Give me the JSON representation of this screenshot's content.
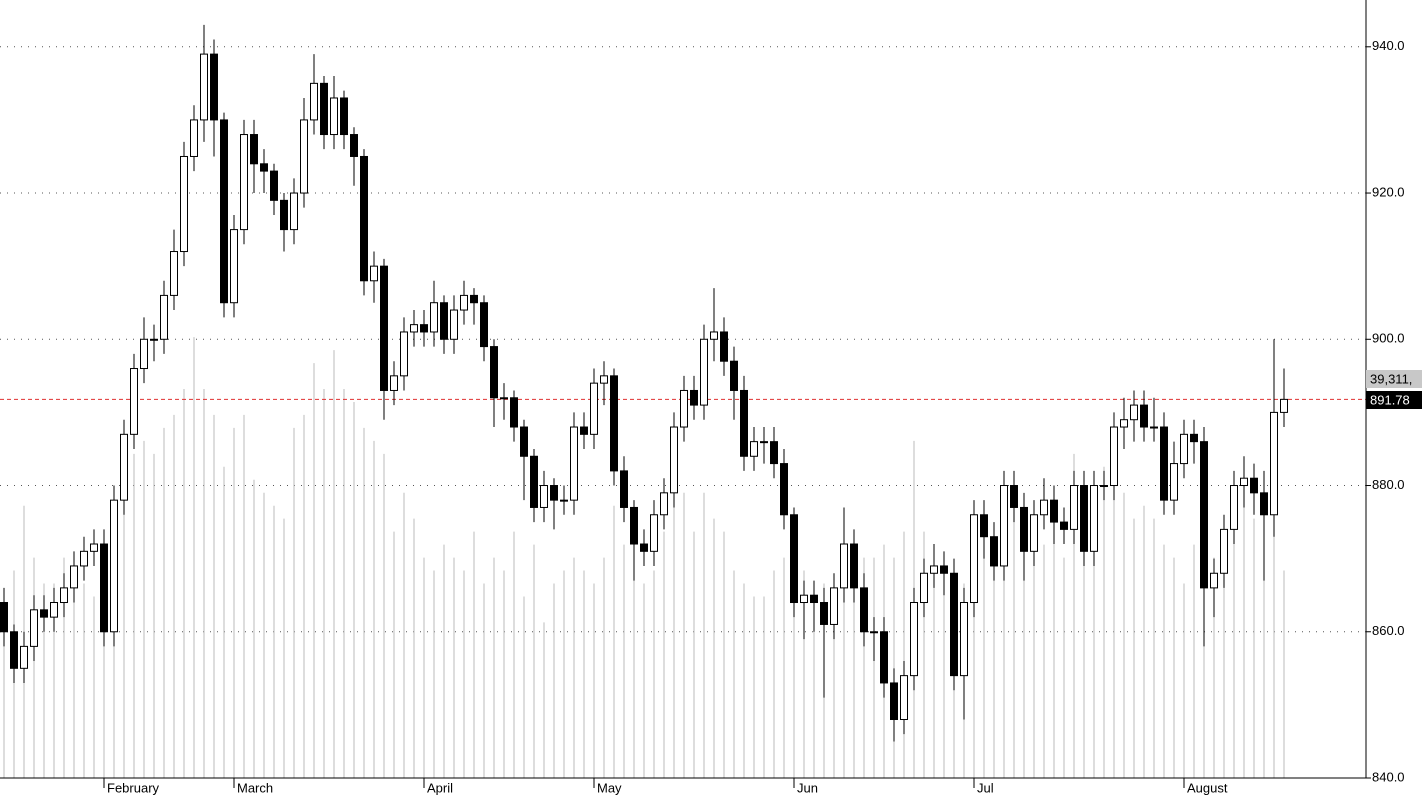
{
  "chart_data": {
    "type": "candlestick",
    "ylim": [
      840,
      946.4
    ],
    "yticks": [
      {
        "value": 840,
        "label": "840.0"
      },
      {
        "value": 860,
        "label": "860.0"
      },
      {
        "value": 880,
        "label": "880.0"
      },
      {
        "value": 900,
        "label": "900.0"
      },
      {
        "value": 920,
        "label": "920.0"
      },
      {
        "value": 940,
        "label": "940.0"
      }
    ],
    "grid": true,
    "xticks": [
      {
        "value": 10,
        "label": "February"
      },
      {
        "value": 23,
        "label": "March"
      },
      {
        "value": 42,
        "label": "April"
      },
      {
        "value": 59,
        "label": "May"
      },
      {
        "value": 79,
        "label": "Jun"
      },
      {
        "value": 97,
        "label": "Jul"
      },
      {
        "value": 118,
        "label": "August"
      }
    ],
    "up_color": "#ffffff",
    "down_color": "#000000",
    "volume_color": "#bbbbbb",
    "reference_color": "#e03030",
    "open": [
      864,
      860,
      855,
      858,
      863,
      862,
      864,
      866,
      869,
      871,
      872,
      860,
      878,
      887,
      896,
      900,
      900,
      906,
      912,
      925,
      930,
      939,
      930,
      905,
      915,
      928,
      924,
      923,
      919,
      915,
      920,
      930,
      935,
      928,
      933,
      928,
      925,
      908,
      910,
      893,
      895,
      901,
      902,
      901,
      905,
      900,
      904,
      906,
      905,
      899,
      892,
      892,
      888,
      884,
      877,
      880,
      878,
      878,
      888,
      887,
      894,
      895,
      882,
      877,
      872,
      871,
      876,
      879,
      888,
      893,
      891,
      900,
      901,
      897,
      893,
      884,
      886,
      886,
      883,
      876,
      864,
      865,
      864,
      861,
      866,
      872,
      866,
      860,
      860,
      853,
      848,
      854,
      864,
      868,
      869,
      868,
      854,
      864,
      876,
      873,
      869,
      880,
      877,
      871,
      876,
      878,
      875,
      874,
      880,
      871,
      880,
      880,
      888,
      889,
      891,
      888,
      888,
      878,
      883,
      887,
      886,
      866,
      868,
      874,
      880,
      881,
      879,
      876,
      890
    ],
    "high": [
      866,
      861,
      860,
      865,
      865,
      866,
      868,
      871,
      873,
      874,
      874,
      880,
      889,
      898,
      903,
      902,
      908,
      915,
      927,
      932,
      943,
      941,
      931,
      917,
      930,
      930,
      926,
      924,
      920,
      922,
      933,
      939,
      936,
      936,
      934,
      929,
      926,
      912,
      911,
      897,
      903,
      904,
      904,
      908,
      906,
      906,
      908,
      907,
      906,
      900,
      894,
      893,
      889,
      885,
      882,
      881,
      880,
      890,
      890,
      896,
      897,
      896,
      884,
      878,
      874,
      878,
      881,
      890,
      895,
      895,
      902,
      907,
      903,
      899,
      895,
      888,
      888,
      888,
      885,
      877,
      867,
      867,
      866,
      868,
      877,
      874,
      868,
      862,
      862,
      855,
      856,
      866,
      870,
      872,
      871,
      870,
      866,
      878,
      878,
      875,
      882,
      882,
      879,
      878,
      881,
      880,
      877,
      882,
      882,
      882,
      882,
      890,
      892,
      893,
      893,
      892,
      890,
      886,
      889,
      889,
      888,
      870,
      876,
      882,
      884,
      883,
      882,
      900,
      896
    ],
    "low": [
      858,
      853,
      853,
      856,
      860,
      860,
      862,
      864,
      867,
      869,
      858,
      858,
      876,
      885,
      894,
      897,
      898,
      904,
      910,
      923,
      927,
      925,
      903,
      903,
      913,
      920,
      920,
      917,
      912,
      913,
      918,
      928,
      926,
      926,
      926,
      921,
      906,
      905,
      889,
      891,
      893,
      899,
      899,
      899,
      898,
      898,
      902,
      902,
      897,
      888,
      889,
      886,
      878,
      875,
      875,
      874,
      876,
      876,
      885,
      885,
      891,
      880,
      875,
      867,
      869,
      869,
      874,
      877,
      886,
      889,
      889,
      897,
      895,
      889,
      882,
      882,
      883,
      881,
      874,
      862,
      859,
      860,
      851,
      859,
      864,
      864,
      858,
      856,
      851,
      845,
      846,
      852,
      862,
      866,
      865,
      852,
      848,
      862,
      870,
      867,
      867,
      875,
      867,
      869,
      874,
      872,
      872,
      872,
      869,
      869,
      878,
      878,
      885,
      886,
      886,
      886,
      876,
      876,
      881,
      883,
      858,
      862,
      866,
      872,
      877,
      876,
      867,
      873,
      888
    ],
    "close": [
      860,
      855,
      858,
      863,
      862,
      864,
      866,
      869,
      871,
      872,
      860,
      878,
      887,
      896,
      900,
      900,
      906,
      912,
      925,
      930,
      939,
      930,
      905,
      915,
      928,
      924,
      923,
      919,
      915,
      920,
      930,
      935,
      928,
      933,
      928,
      925,
      908,
      910,
      893,
      895,
      901,
      902,
      901,
      905,
      900,
      904,
      906,
      905,
      899,
      892,
      892,
      888,
      884,
      877,
      880,
      878,
      878,
      888,
      887,
      894,
      895,
      882,
      877,
      872,
      871,
      876,
      879,
      888,
      893,
      891,
      900,
      901,
      897,
      893,
      884,
      886,
      886,
      883,
      876,
      864,
      865,
      864,
      861,
      866,
      872,
      866,
      860,
      860,
      853,
      848,
      854,
      864,
      868,
      869,
      868,
      854,
      864,
      876,
      873,
      869,
      880,
      877,
      871,
      876,
      878,
      875,
      874,
      880,
      871,
      880,
      880,
      888,
      889,
      891,
      888,
      888,
      878,
      883,
      887,
      886,
      866,
      868,
      874,
      880,
      881,
      879,
      876,
      890,
      891.78
    ],
    "volume": [
      14000,
      16000,
      21000,
      17000,
      15000,
      15000,
      17000,
      16000,
      15000,
      14000,
      18000,
      21000,
      24000,
      25000,
      26000,
      25000,
      27000,
      28000,
      30000,
      34000,
      30000,
      28000,
      24000,
      27000,
      28000,
      23000,
      22000,
      21000,
      20000,
      27000,
      28000,
      32000,
      30000,
      33000,
      30000,
      29000,
      27000,
      26000,
      25000,
      19000,
      22000,
      20000,
      17000,
      16000,
      18000,
      17000,
      16000,
      19000,
      15000,
      17000,
      16000,
      19000,
      14000,
      18000,
      12000,
      15000,
      16000,
      17000,
      16000,
      15000,
      17000,
      21000,
      18000,
      16000,
      15000,
      16000,
      19000,
      21000,
      22000,
      19000,
      22000,
      20000,
      19000,
      16000,
      15000,
      14000,
      14000,
      16000,
      17000,
      15000,
      16000,
      14000,
      15000,
      13000,
      14000,
      15000,
      17000,
      17000,
      18000,
      17000,
      19000,
      26000,
      19000,
      18000,
      17000,
      16000,
      15000,
      16000,
      19000,
      17000,
      18000,
      20000,
      19000,
      20000,
      18000,
      21000,
      17000,
      25000,
      19000,
      22000,
      24000,
      23000,
      22000,
      20000,
      21000,
      20000,
      18000,
      17000,
      15000,
      18000,
      22000,
      17000,
      19000,
      23000,
      24000,
      20000,
      19000,
      21000,
      16000
    ],
    "vlim": [
      0,
      60000
    ],
    "volume_label": "39,311,",
    "price_label": "891.78"
  }
}
